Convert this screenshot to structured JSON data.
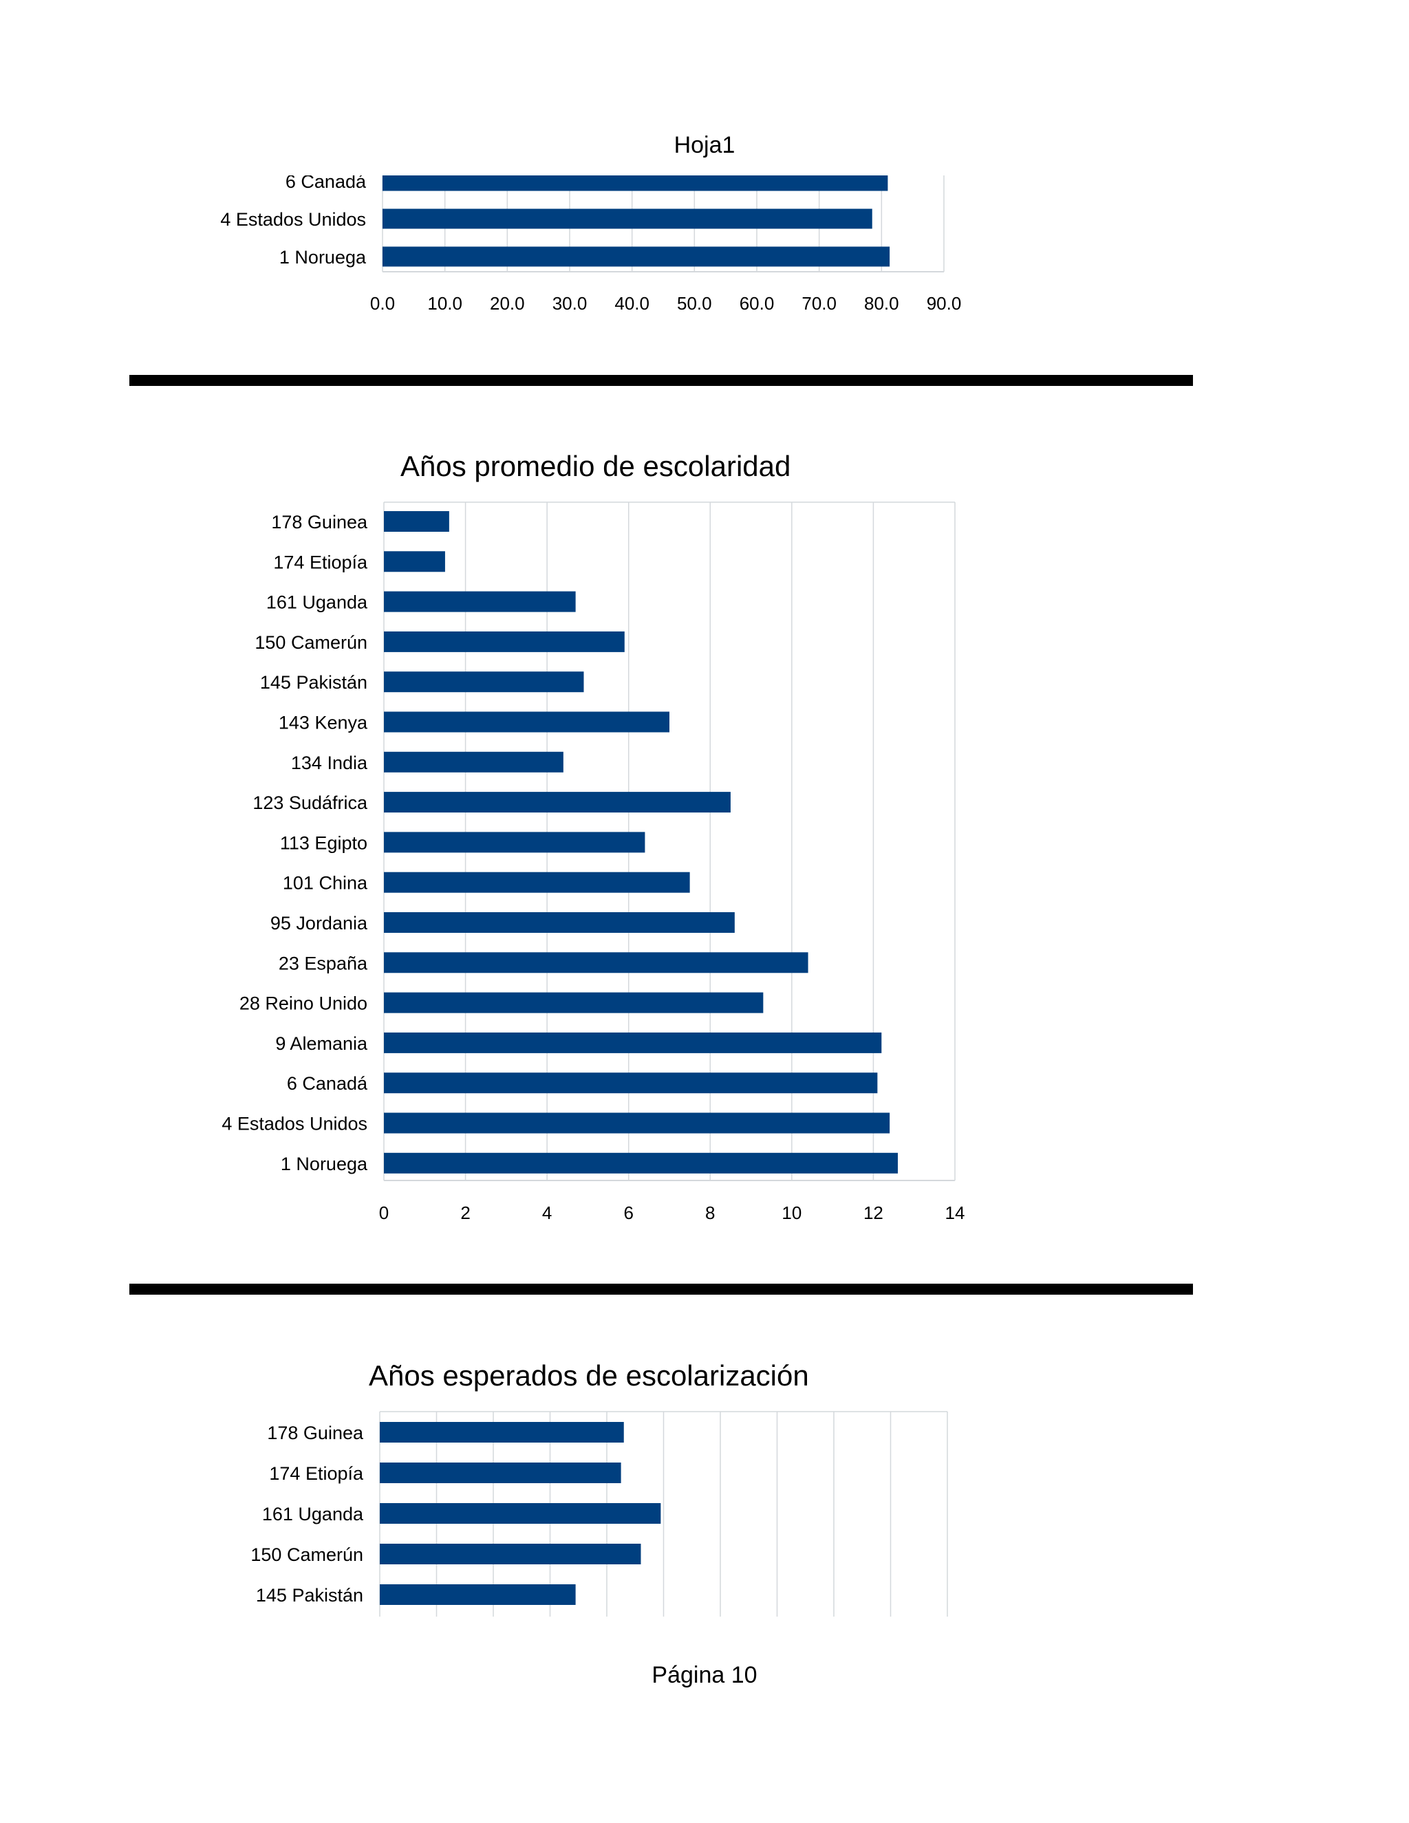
{
  "header": {
    "sheet_name": "Hoja1"
  },
  "footer": {
    "page_label": "Página 10"
  },
  "colors": {
    "bar": "#003f7f",
    "grid": "#d4d8dc",
    "divider": "#000000"
  },
  "chart_data": [
    {
      "type": "bar",
      "orientation": "horizontal",
      "title": "",
      "categories": [
        "6 Canadá",
        "4 Estados Unidos",
        "1 Noruega"
      ],
      "visible_labels": [
        "6 Canadá",
        "4 Estados Unidos",
        "1 Noruega"
      ],
      "values": [
        81.0,
        78.5,
        81.3
      ],
      "x_ticks": [
        "0.0",
        "10.0",
        "20.0",
        "30.0",
        "40.0",
        "50.0",
        "60.0",
        "70.0",
        "80.0",
        "90.0"
      ],
      "xlim": [
        0,
        90
      ],
      "xlabel": "",
      "ylabel": "",
      "grid": true,
      "note": "top of chart cut off; first row partially hidden"
    },
    {
      "type": "bar",
      "orientation": "horizontal",
      "title": "Años promedio de escolaridad",
      "categories": [
        "178 Guinea",
        "174 Etiopía",
        "161 Uganda",
        "150 Camerún",
        "145 Pakistán",
        "143 Kenya",
        "134 India",
        "123 Sudáfrica",
        "113 Egipto",
        "101 China",
        "95 Jordania",
        "23 España",
        "28 Reino Unido",
        "9 Alemania",
        "6 Canadá",
        "4 Estados Unidos",
        "1 Noruega"
      ],
      "values": [
        1.6,
        1.5,
        4.7,
        5.9,
        4.9,
        7.0,
        4.4,
        8.5,
        6.4,
        7.5,
        8.6,
        10.4,
        9.3,
        12.2,
        12.1,
        12.4,
        12.6
      ],
      "x_ticks": [
        "0",
        "2",
        "4",
        "6",
        "8",
        "10",
        "12",
        "14"
      ],
      "xlim": [
        0,
        14
      ],
      "xlabel": "",
      "ylabel": "",
      "grid": true
    },
    {
      "type": "bar",
      "orientation": "horizontal",
      "title": "Años esperados de escolarización",
      "categories": [
        "178 Guinea",
        "174 Etiopía",
        "161 Uganda",
        "150 Camerún",
        "145 Pakistán"
      ],
      "values": [
        8.6,
        8.5,
        9.9,
        9.2,
        6.9
      ],
      "xlim": [
        0,
        20
      ],
      "xlabel": "",
      "ylabel": "",
      "grid": true,
      "note": "bottom of chart cut off; remaining rows and axis not visible"
    }
  ]
}
